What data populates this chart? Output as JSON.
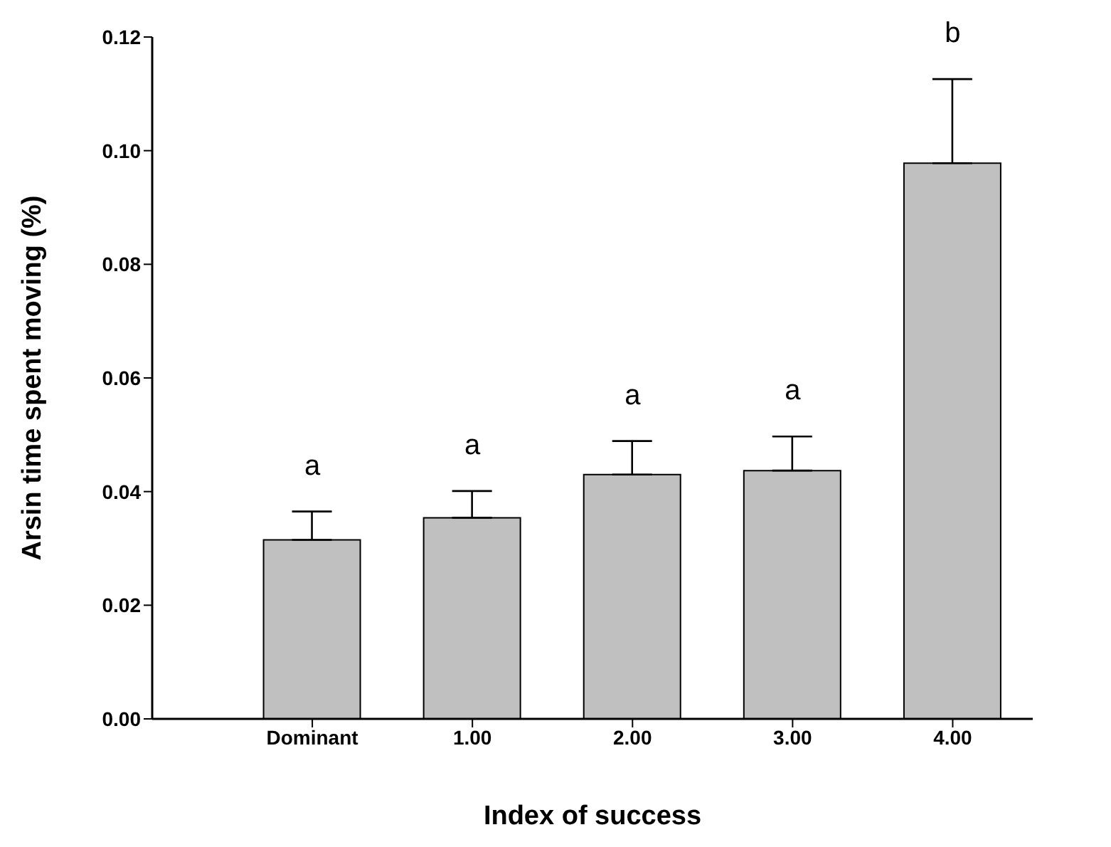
{
  "chart_data": {
    "type": "bar",
    "xlabel": "Index of success",
    "ylabel": "Arsin time spent moving (%)",
    "categories": [
      "Dominant",
      "1.00",
      "2.00",
      "3.00",
      "4.00"
    ],
    "values": [
      0.0315,
      0.0354,
      0.043,
      0.0437,
      0.0978
    ],
    "errors": [
      [
        0.0315,
        0.0365
      ],
      [
        0.0354,
        0.0401
      ],
      [
        0.043,
        0.0489
      ],
      [
        0.0437,
        0.0497
      ],
      [
        0.0978,
        0.1126
      ]
    ],
    "color": "#c0c0c0",
    "ylim": [
      0,
      0.12
    ],
    "yticks": [
      {
        "value": 0,
        "label": "0.00"
      },
      {
        "value": 0.02,
        "label": "0.02"
      },
      {
        "value": 0.04,
        "label": "0.04"
      },
      {
        "value": 0.06,
        "label": "0.06"
      },
      {
        "value": 0.08,
        "label": "0.08"
      },
      {
        "value": 0.1,
        "label": "0.10"
      },
      {
        "value": 0.12,
        "label": "0.12"
      }
    ],
    "annotations": [
      {
        "text": "a",
        "x": "Dominant",
        "y": 0.0365
      },
      {
        "text": "a",
        "x": "1.00",
        "y": 0.0401
      },
      {
        "text": "a",
        "x": "2.00",
        "y": 0.0489
      },
      {
        "text": "a",
        "x": "3.00",
        "y": 0.0497
      },
      {
        "text": "b",
        "x": "4.00",
        "y": 0.1126
      }
    ],
    "grid": false,
    "legend": false
  }
}
